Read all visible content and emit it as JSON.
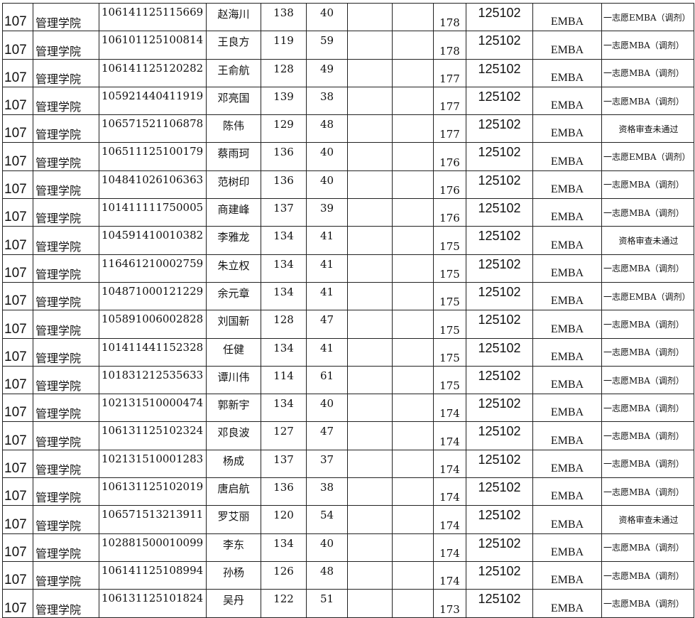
{
  "rows": [
    [
      "107",
      "管理学院",
      "106141125115669",
      "赵海川",
      "138",
      "40",
      "",
      "",
      "178",
      "125102",
      "EMBA",
      "一志愿EMBA（调剂）"
    ],
    [
      "107",
      "管理学院",
      "106101125100814",
      "王良方",
      "119",
      "59",
      "",
      "",
      "178",
      "125102",
      "EMBA",
      "一志愿MBA（调剂）"
    ],
    [
      "107",
      "管理学院",
      "106141125120282",
      "王俞航",
      "128",
      "49",
      "",
      "",
      "177",
      "125102",
      "EMBA",
      "一志愿MBA（调剂）"
    ],
    [
      "107",
      "管理学院",
      "105921440411919",
      "邓亮国",
      "139",
      "38",
      "",
      "",
      "177",
      "125102",
      "EMBA",
      "一志愿MBA（调剂）"
    ],
    [
      "107",
      "管理学院",
      "106571521106878",
      "陈伟",
      "129",
      "48",
      "",
      "",
      "177",
      "125102",
      "EMBA",
      "资格审查未通过"
    ],
    [
      "107",
      "管理学院",
      "106511125100179",
      "蔡雨珂",
      "136",
      "40",
      "",
      "",
      "176",
      "125102",
      "EMBA",
      "一志愿EMBA（调剂）"
    ],
    [
      "107",
      "管理学院",
      "104841026106363",
      "范树印",
      "136",
      "40",
      "",
      "",
      "176",
      "125102",
      "EMBA",
      "一志愿MBA（调剂）"
    ],
    [
      "107",
      "管理学院",
      "101411111750005",
      "商建峰",
      "137",
      "39",
      "",
      "",
      "176",
      "125102",
      "EMBA",
      "一志愿MBA（调剂）"
    ],
    [
      "107",
      "管理学院",
      "104591410010382",
      "李雅龙",
      "134",
      "41",
      "",
      "",
      "175",
      "125102",
      "EMBA",
      "资格审查未通过"
    ],
    [
      "107",
      "管理学院",
      "116461210002759",
      "朱立权",
      "134",
      "41",
      "",
      "",
      "175",
      "125102",
      "EMBA",
      "一志愿MBA（调剂）"
    ],
    [
      "107",
      "管理学院",
      "104871000121229",
      "余元章",
      "134",
      "41",
      "",
      "",
      "175",
      "125102",
      "EMBA",
      "一志愿EMBA（调剂）"
    ],
    [
      "107",
      "管理学院",
      "105891006002828",
      "刘国新",
      "128",
      "47",
      "",
      "",
      "175",
      "125102",
      "EMBA",
      "一志愿MBA（调剂）"
    ],
    [
      "107",
      "管理学院",
      "101411441152328",
      "任健",
      "134",
      "41",
      "",
      "",
      "175",
      "125102",
      "EMBA",
      "一志愿MBA（调剂）"
    ],
    [
      "107",
      "管理学院",
      "101831212535633",
      "谭川伟",
      "114",
      "61",
      "",
      "",
      "175",
      "125102",
      "EMBA",
      "一志愿MBA（调剂）"
    ],
    [
      "107",
      "管理学院",
      "102131510000474",
      "郭新宇",
      "134",
      "40",
      "",
      "",
      "174",
      "125102",
      "EMBA",
      "一志愿MBA（调剂）"
    ],
    [
      "107",
      "管理学院",
      "106131125102324",
      "邓良波",
      "127",
      "47",
      "",
      "",
      "174",
      "125102",
      "EMBA",
      "一志愿MBA（调剂）"
    ],
    [
      "107",
      "管理学院",
      "102131510001283",
      "杨成",
      "137",
      "37",
      "",
      "",
      "174",
      "125102",
      "EMBA",
      "一志愿MBA（调剂）"
    ],
    [
      "107",
      "管理学院",
      "106131125102019",
      "唐启航",
      "136",
      "38",
      "",
      "",
      "174",
      "125102",
      "EMBA",
      "一志愿MBA（调剂）"
    ],
    [
      "107",
      "管理学院",
      "106571513213911",
      "罗艾丽",
      "120",
      "54",
      "",
      "",
      "174",
      "125102",
      "EMBA",
      "资格审查未通过"
    ],
    [
      "107",
      "管理学院",
      "102881500010099",
      "李东",
      "134",
      "40",
      "",
      "",
      "174",
      "125102",
      "EMBA",
      "一志愿MBA（调剂）"
    ],
    [
      "107",
      "管理学院",
      "106141125108994",
      "孙杨",
      "126",
      "48",
      "",
      "",
      "174",
      "125102",
      "EMBA",
      "一志愿MBA（调剂）"
    ],
    [
      "107",
      "管理学院",
      "106131125101824",
      "吴丹",
      "122",
      "51",
      "",
      "",
      "173",
      "125102",
      "EMBA",
      "一志愿MBA（调剂）"
    ]
  ]
}
